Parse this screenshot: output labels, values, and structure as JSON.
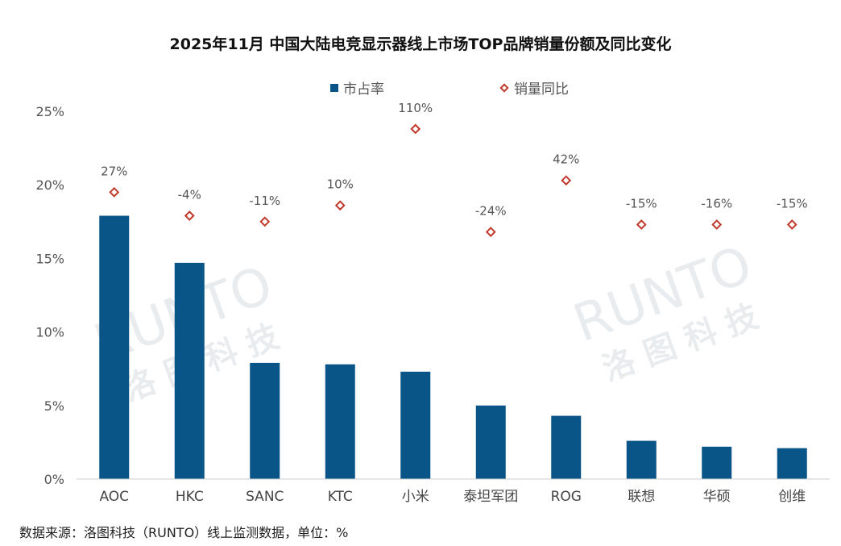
{
  "title": "2025年11月 中国大陆电竞显示器线上市场TOP品牌销量份额及同比变化",
  "legend": {
    "bar_label": "市占率",
    "marker_label": "销量同比"
  },
  "footer": "数据来源：洛图科技（RUNTO）线上监测数据，单位：%",
  "watermark": {
    "latin": "RUNTO",
    "cjk": "洛 图 科 技"
  },
  "colors": {
    "bar": "#0a5588",
    "marker": "#c0392b",
    "axis": "#cccccc"
  },
  "chart_data": {
    "type": "bar",
    "categories": [
      "AOC",
      "HKC",
      "SANC",
      "KTC",
      "小米",
      "泰坦军团",
      "ROG",
      "联想",
      "华硕",
      "创维"
    ],
    "series": [
      {
        "name": "市占率",
        "type": "bar",
        "values": [
          17.9,
          14.7,
          7.9,
          7.8,
          7.3,
          5.0,
          4.3,
          2.6,
          2.2,
          2.1
        ]
      },
      {
        "name": "销量同比",
        "type": "scatter",
        "marker": "diamond",
        "display_y": [
          19.5,
          17.9,
          17.5,
          18.6,
          23.8,
          16.8,
          20.3,
          17.3,
          17.3,
          17.3
        ],
        "labels": [
          "27%",
          "-4%",
          "-11%",
          "10%",
          "110%",
          "-24%",
          "42%",
          "-15%",
          "-16%",
          "-15%"
        ]
      }
    ],
    "yticks": [
      "0%",
      "5%",
      "10%",
      "15%",
      "20%",
      "25%"
    ],
    "ylim": [
      0,
      25
    ],
    "grid": false,
    "legend_position": "top-center"
  }
}
